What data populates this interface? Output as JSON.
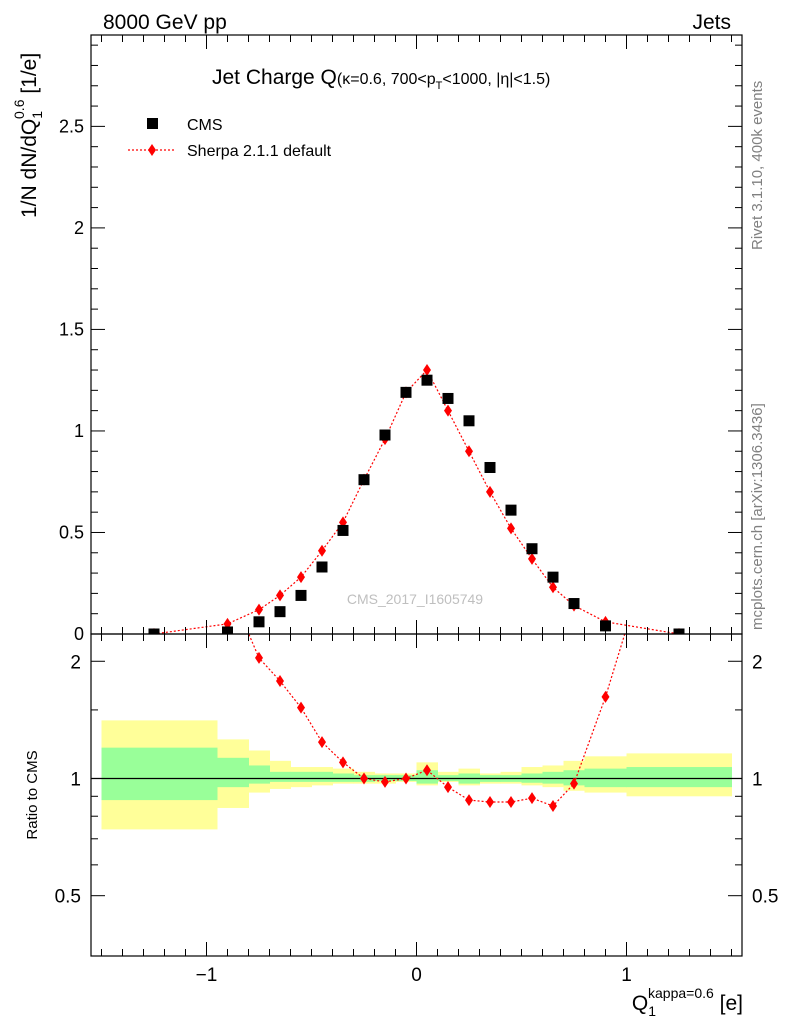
{
  "header": {
    "left": "8000 GeV pp",
    "right": "Jets"
  },
  "side_labels": {
    "rivet": "Rivet 3.1.10,  400k events",
    "mcplots": "mcplots.cern.ch [arXiv:1306.3436]"
  },
  "watermark": "CMS_2017_I1605749",
  "colors": {
    "data": "#000000",
    "mc": "#ff0000",
    "band_inner": "#99ff99",
    "band_outer": "#ffff99"
  },
  "chart_data": [
    {
      "type": "scatter",
      "title": {
        "main": "Jet Charge Q",
        "sub": "(κ=0.6, 700<p",
        "sub_sub": "T",
        "sub_end": "<1000, |η|<1.5)"
      },
      "ylabel": {
        "main": "1/N dN/dQ",
        "sub": "1",
        "sup": "0.6",
        "end": " [1/e]"
      },
      "xlim": [
        -1.55,
        1.55
      ],
      "ylim": [
        0,
        2.95
      ],
      "yticks": [
        0,
        0.5,
        1,
        1.5,
        2,
        2.5
      ],
      "ytick_labels": [
        "0",
        "0.5",
        "1",
        "1.5",
        "2",
        "2.5"
      ],
      "legend_position": "top-left",
      "series": [
        {
          "name": "CMS",
          "marker": "square",
          "x": [
            -1.25,
            -0.9,
            -0.75,
            -0.65,
            -0.55,
            -0.45,
            -0.35,
            -0.25,
            -0.15,
            -0.05,
            0.05,
            0.15,
            0.25,
            0.35,
            0.45,
            0.55,
            0.65,
            0.75,
            0.9,
            1.25
          ],
          "y": [
            0.0,
            0.01,
            0.06,
            0.11,
            0.19,
            0.33,
            0.51,
            0.76,
            0.98,
            1.19,
            1.25,
            1.16,
            1.05,
            0.82,
            0.61,
            0.42,
            0.28,
            0.15,
            0.04,
            0.0
          ]
        },
        {
          "name": "Sherpa 2.1.1 default",
          "marker": "diamond",
          "x": [
            -1.25,
            -0.9,
            -0.75,
            -0.65,
            -0.55,
            -0.45,
            -0.35,
            -0.25,
            -0.15,
            -0.05,
            0.05,
            0.15,
            0.25,
            0.35,
            0.45,
            0.55,
            0.65,
            0.75,
            0.9,
            1.25
          ],
          "y": [
            0.0,
            0.05,
            0.12,
            0.19,
            0.28,
            0.41,
            0.55,
            0.76,
            0.96,
            1.19,
            1.3,
            1.1,
            0.9,
            0.7,
            0.52,
            0.37,
            0.23,
            0.14,
            0.06,
            0.0
          ]
        }
      ]
    },
    {
      "type": "scatter",
      "ylabel": "Ratio to CMS",
      "xlabel": {
        "main": "Q",
        "sub": "1",
        "sup": "kappa=0.6",
        "end": " [e]"
      },
      "ylim": [
        0.35,
        2.35
      ],
      "yticks": [
        0.5,
        1,
        2
      ],
      "ytick_labels": [
        "0.5",
        "1",
        "2"
      ],
      "xticks": [
        -1,
        0,
        1
      ],
      "xtick_labels": [
        "−1",
        "0",
        "1"
      ],
      "bands": [
        {
          "x0": -1.5,
          "x1": -0.95,
          "inner": [
            0.88,
            1.2
          ],
          "outer": [
            0.74,
            1.41
          ]
        },
        {
          "x0": -0.95,
          "x1": -0.8,
          "inner": [
            0.95,
            1.13
          ],
          "outer": [
            0.84,
            1.26
          ]
        },
        {
          "x0": -0.8,
          "x1": -0.7,
          "inner": [
            0.97,
            1.08
          ],
          "outer": [
            0.92,
            1.18
          ]
        },
        {
          "x0": -0.7,
          "x1": -0.6,
          "inner": [
            0.98,
            1.04
          ],
          "outer": [
            0.94,
            1.11
          ]
        },
        {
          "x0": -0.6,
          "x1": -0.5,
          "inner": [
            0.98,
            1.04
          ],
          "outer": [
            0.95,
            1.07
          ]
        },
        {
          "x0": -0.5,
          "x1": -0.4,
          "inner": [
            0.98,
            1.04
          ],
          "outer": [
            0.96,
            1.07
          ]
        },
        {
          "x0": -0.4,
          "x1": -0.3,
          "inner": [
            0.98,
            1.03
          ],
          "outer": [
            0.97,
            1.06
          ]
        },
        {
          "x0": -0.3,
          "x1": -0.2,
          "inner": [
            0.98,
            1.02
          ],
          "outer": [
            0.97,
            1.04
          ]
        },
        {
          "x0": -0.2,
          "x1": -0.1,
          "inner": [
            0.985,
            1.02
          ],
          "outer": [
            0.97,
            1.03
          ]
        },
        {
          "x0": -0.1,
          "x1": 0.0,
          "inner": [
            0.985,
            1.02
          ],
          "outer": [
            0.98,
            1.03
          ]
        },
        {
          "x0": 0.0,
          "x1": 0.1,
          "inner": [
            0.97,
            1.05
          ],
          "outer": [
            0.96,
            1.1
          ]
        },
        {
          "x0": 0.1,
          "x1": 0.2,
          "inner": [
            0.985,
            1.02
          ],
          "outer": [
            0.98,
            1.04
          ]
        },
        {
          "x0": 0.2,
          "x1": 0.3,
          "inner": [
            0.97,
            1.03
          ],
          "outer": [
            0.96,
            1.06
          ]
        },
        {
          "x0": 0.3,
          "x1": 0.4,
          "inner": [
            0.98,
            1.02
          ],
          "outer": [
            0.97,
            1.03
          ]
        },
        {
          "x0": 0.4,
          "x1": 0.5,
          "inner": [
            0.98,
            1.02
          ],
          "outer": [
            0.97,
            1.04
          ]
        },
        {
          "x0": 0.5,
          "x1": 0.6,
          "inner": [
            0.975,
            1.03
          ],
          "outer": [
            0.96,
            1.07
          ]
        },
        {
          "x0": 0.6,
          "x1": 0.7,
          "inner": [
            0.97,
            1.04
          ],
          "outer": [
            0.95,
            1.08
          ]
        },
        {
          "x0": 0.7,
          "x1": 0.8,
          "inner": [
            0.96,
            1.05
          ],
          "outer": [
            0.93,
            1.11
          ]
        },
        {
          "x0": 0.8,
          "x1": 1.0,
          "inner": [
            0.95,
            1.06
          ],
          "outer": [
            0.92,
            1.14
          ]
        },
        {
          "x0": 1.0,
          "x1": 1.5,
          "inner": [
            0.95,
            1.07
          ],
          "outer": [
            0.9,
            1.16
          ]
        }
      ],
      "series": [
        {
          "name": "Sherpa 2.1.1 default",
          "marker": "diamond",
          "x": [
            -0.75,
            -0.65,
            -0.55,
            -0.45,
            -0.35,
            -0.25,
            -0.15,
            -0.05,
            0.05,
            0.15,
            0.25,
            0.35,
            0.45,
            0.55,
            0.65,
            0.75,
            0.9
          ],
          "y": [
            2.04,
            1.78,
            1.52,
            1.24,
            1.1,
            1.0,
            0.98,
            1.0,
            1.05,
            0.95,
            0.88,
            0.87,
            0.87,
            0.89,
            0.85,
            0.97,
            1.62
          ]
        }
      ]
    }
  ]
}
